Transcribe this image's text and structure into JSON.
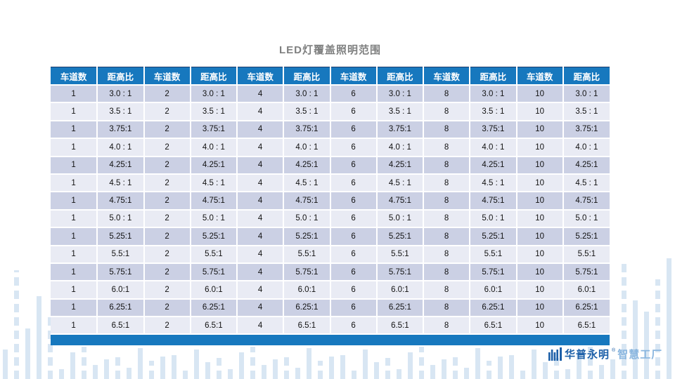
{
  "title": "LED灯覆盖照明范围",
  "table": {
    "lane_header": "车道数",
    "ratio_header": "距高比",
    "lanes": [
      "1",
      "2",
      "4",
      "6",
      "8",
      "10"
    ],
    "ratios": [
      "3.0 : 1",
      "3.5 : 1",
      "3.75:1",
      "4.0 : 1",
      "4.25:1",
      "4.5 : 1",
      "4.75:1",
      "5.0 : 1",
      "5.25:1",
      "5.5:1",
      "5.75:1",
      "6.0:1",
      "6.25:1",
      "6.5:1"
    ]
  },
  "footer": {
    "brand": "华普永明",
    "registered_mark": "®",
    "brand_suffix": "智慧工厂"
  },
  "colors": {
    "header_blue": "#1778BE",
    "row_dark": "#CBD0E4",
    "row_light": "#E9EBF4",
    "deco_bar": "#D8E6F3",
    "title_gray": "#7F8080",
    "brand_dark_blue": "#1C5FA8",
    "brand_light_blue": "#8AB6DF"
  }
}
